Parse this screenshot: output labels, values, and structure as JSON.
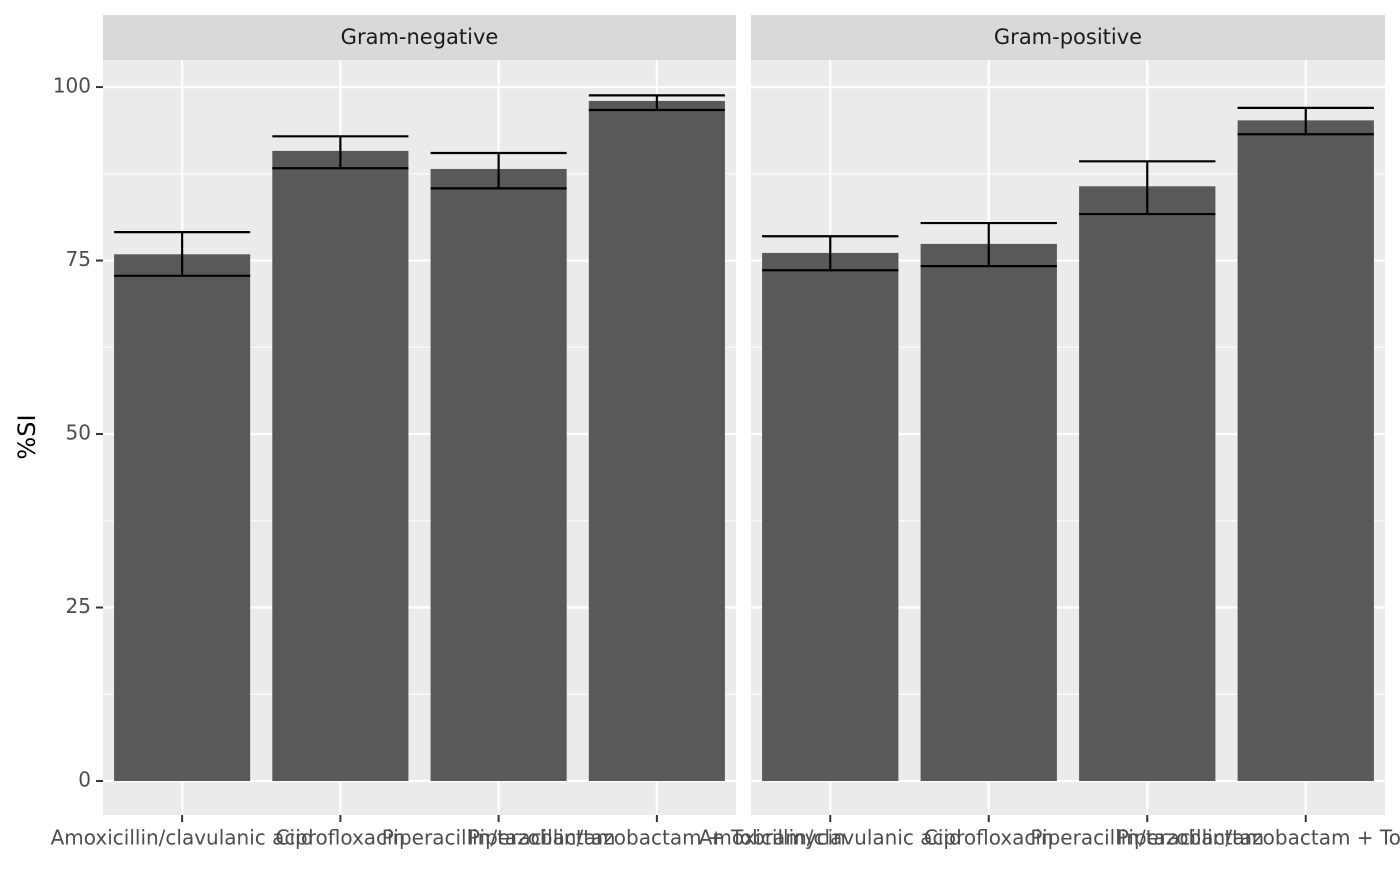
{
  "chart_data": {
    "type": "bar",
    "ylabel": "%SI",
    "categories": [
      "Amoxicillin/clavulanic acid",
      "Ciprofloxacin",
      "Piperacillin/tazobactam",
      "Piperacillin/tazobactam + Tobramycin"
    ],
    "facets": [
      {
        "name": "Gram-negative",
        "color": "#595959",
        "values": [
          75.9,
          90.8,
          88.2,
          98.0
        ],
        "lower": [
          72.8,
          88.3,
          85.4,
          96.7
        ],
        "upper": [
          79.1,
          92.9,
          90.5,
          98.8
        ]
      },
      {
        "name": "Gram-positive",
        "color": "#595959",
        "values": [
          76.1,
          77.4,
          85.7,
          95.2
        ],
        "lower": [
          73.6,
          74.2,
          81.7,
          93.2
        ],
        "upper": [
          78.5,
          80.4,
          89.3,
          97.0
        ]
      }
    ],
    "ylim": [
      -4.9,
      103.9
    ],
    "yticks": [
      0,
      25,
      50,
      75,
      100
    ],
    "grid": true
  }
}
